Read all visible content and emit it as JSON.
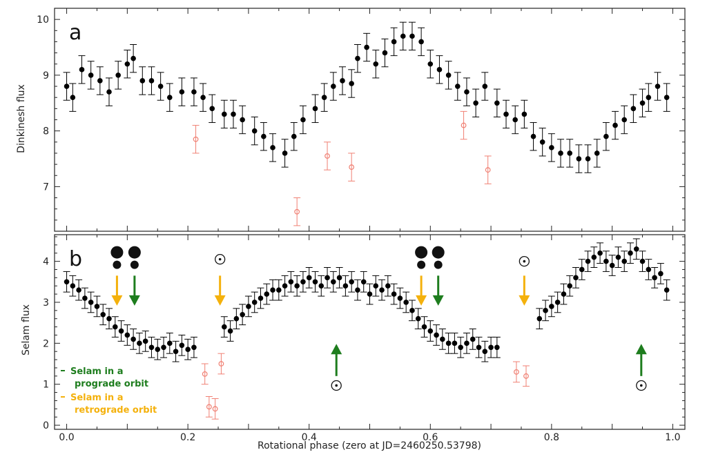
{
  "colors": {
    "data_point": "#000000",
    "outlier": "#f07f72",
    "prograde": "#1e7d1e",
    "retrograde": "#f4b10c",
    "axis": "#222222"
  },
  "xaxis": {
    "label": "Rotational phase (zero at JD=2460250.53798)",
    "range": [
      -0.02,
      1.02
    ],
    "ticks": [
      0.0,
      0.2,
      0.4,
      0.6,
      0.8,
      1.0
    ],
    "tick_labels": [
      "0.0",
      "0.2",
      "0.4",
      "0.6",
      "0.8",
      "1.0"
    ]
  },
  "chart_data": [
    {
      "type": "scatter",
      "panel_letter": "a",
      "ylabel": "Dinkinesh flux",
      "ylim": [
        6.2,
        10.2
      ],
      "yticks": [
        7,
        8,
        9,
        10
      ],
      "ytick_labels": [
        "7",
        "8",
        "9",
        "10"
      ],
      "error_bar": 0.25,
      "series": [
        {
          "role": "main",
          "x": [
            0.0,
            0.01,
            0.025,
            0.04,
            0.055,
            0.07,
            0.085,
            0.1,
            0.11,
            0.125,
            0.14,
            0.155,
            0.17,
            0.19,
            0.21,
            0.225,
            0.24,
            0.26,
            0.275,
            0.29,
            0.31,
            0.325,
            0.34,
            0.36,
            0.375,
            0.39,
            0.41,
            0.425,
            0.44,
            0.455,
            0.47,
            0.48,
            0.495,
            0.51,
            0.525,
            0.54,
            0.555,
            0.57,
            0.585,
            0.6,
            0.615,
            0.63,
            0.645,
            0.66,
            0.675,
            0.69,
            0.71,
            0.725,
            0.74,
            0.755,
            0.77,
            0.785,
            0.8,
            0.815,
            0.83,
            0.845,
            0.86,
            0.875,
            0.89,
            0.905,
            0.92,
            0.935,
            0.95,
            0.96,
            0.975,
            0.99
          ],
          "y": [
            8.8,
            8.6,
            9.1,
            9.0,
            8.9,
            8.7,
            9.0,
            9.2,
            9.3,
            8.9,
            8.9,
            8.8,
            8.6,
            8.7,
            8.7,
            8.6,
            8.4,
            8.3,
            8.3,
            8.2,
            8.0,
            7.9,
            7.7,
            7.6,
            7.9,
            8.2,
            8.4,
            8.6,
            8.8,
            8.9,
            8.85,
            9.3,
            9.5,
            9.2,
            9.4,
            9.6,
            9.7,
            9.7,
            9.6,
            9.2,
            9.1,
            9.0,
            8.8,
            8.7,
            8.5,
            8.8,
            8.5,
            8.3,
            8.2,
            8.3,
            7.9,
            7.8,
            7.7,
            7.6,
            7.6,
            7.5,
            7.5,
            7.6,
            7.9,
            8.1,
            8.2,
            8.4,
            8.5,
            8.6,
            8.8,
            8.6
          ]
        },
        {
          "role": "outlier",
          "x": [
            0.213,
            0.38,
            0.43,
            0.47,
            0.655,
            0.695
          ],
          "y": [
            7.85,
            6.55,
            7.55,
            7.35,
            8.1,
            7.3
          ]
        }
      ]
    },
    {
      "type": "scatter",
      "panel_letter": "b",
      "ylabel": "Selam flux",
      "ylim": [
        -0.1,
        4.65
      ],
      "yticks": [
        0,
        1,
        2,
        3,
        4
      ],
      "ytick_labels": [
        "0",
        "1",
        "2",
        "3",
        "4"
      ],
      "error_bar": 0.25,
      "series": [
        {
          "role": "main",
          "x": [
            0.0,
            0.01,
            0.02,
            0.03,
            0.04,
            0.05,
            0.06,
            0.07,
            0.08,
            0.09,
            0.1,
            0.11,
            0.12,
            0.13,
            0.14,
            0.15,
            0.16,
            0.17,
            0.18,
            0.19,
            0.2,
            0.21,
            0.26,
            0.27,
            0.28,
            0.29,
            0.3,
            0.31,
            0.32,
            0.33,
            0.34,
            0.35,
            0.36,
            0.37,
            0.38,
            0.39,
            0.4,
            0.41,
            0.42,
            0.43,
            0.44,
            0.45,
            0.46,
            0.47,
            0.48,
            0.49,
            0.5,
            0.51,
            0.52,
            0.53,
            0.54,
            0.55,
            0.56,
            0.57,
            0.58,
            0.59,
            0.6,
            0.61,
            0.62,
            0.63,
            0.64,
            0.65,
            0.66,
            0.67,
            0.68,
            0.69,
            0.7,
            0.71,
            0.78,
            0.79,
            0.8,
            0.81,
            0.82,
            0.83,
            0.84,
            0.85,
            0.86,
            0.87,
            0.88,
            0.89,
            0.9,
            0.91,
            0.92,
            0.93,
            0.94,
            0.95,
            0.96,
            0.97,
            0.98,
            0.99
          ],
          "y": [
            3.5,
            3.4,
            3.3,
            3.1,
            3.0,
            2.9,
            2.7,
            2.6,
            2.4,
            2.3,
            2.2,
            2.1,
            2.0,
            2.05,
            1.9,
            1.85,
            1.9,
            2.0,
            1.8,
            1.95,
            1.85,
            1.9,
            2.4,
            2.3,
            2.6,
            2.7,
            2.9,
            3.0,
            3.1,
            3.2,
            3.3,
            3.3,
            3.4,
            3.5,
            3.4,
            3.5,
            3.6,
            3.5,
            3.4,
            3.6,
            3.5,
            3.6,
            3.4,
            3.5,
            3.3,
            3.5,
            3.2,
            3.4,
            3.3,
            3.4,
            3.2,
            3.1,
            3.0,
            2.8,
            2.6,
            2.4,
            2.3,
            2.2,
            2.1,
            2.0,
            2.0,
            1.9,
            2.0,
            2.1,
            1.9,
            1.8,
            1.9,
            1.9,
            2.6,
            2.8,
            2.9,
            3.0,
            3.2,
            3.4,
            3.6,
            3.8,
            4.0,
            4.1,
            4.2,
            4.0,
            3.9,
            4.1,
            4.0,
            4.2,
            4.3,
            4.0,
            3.8,
            3.6,
            3.7,
            3.3
          ]
        },
        {
          "role": "outlier",
          "x": [
            0.228,
            0.235,
            0.245,
            0.255,
            0.742,
            0.758
          ],
          "y": [
            1.25,
            0.45,
            0.4,
            1.5,
            1.3,
            1.2
          ]
        }
      ],
      "legend": {
        "prograde": "Selam in a\nprograde orbit",
        "retrograde": "Selam in a\nretrograde orbit"
      },
      "annotations": [
        {
          "kind": "arrow-down",
          "color": "retrograde",
          "x": 0.083,
          "y_from": 3.65,
          "y_to": 2.95
        },
        {
          "kind": "arrow-down",
          "color": "prograde",
          "x": 0.112,
          "y_from": 3.65,
          "y_to": 2.95
        },
        {
          "kind": "arrow-down",
          "color": "retrograde",
          "x": 0.253,
          "y_from": 3.65,
          "y_to": 2.95
        },
        {
          "kind": "arrow-down",
          "color": "retrograde",
          "x": 0.585,
          "y_from": 3.65,
          "y_to": 2.95
        },
        {
          "kind": "arrow-down",
          "color": "prograde",
          "x": 0.613,
          "y_from": 3.65,
          "y_to": 2.95
        },
        {
          "kind": "arrow-down",
          "color": "retrograde",
          "x": 0.755,
          "y_from": 3.65,
          "y_to": 2.95
        },
        {
          "kind": "arrow-up",
          "color": "prograde",
          "x": 0.445,
          "y_from": 1.2,
          "y_to": 1.95
        },
        {
          "kind": "arrow-up",
          "color": "prograde",
          "x": 0.948,
          "y_from": 1.2,
          "y_to": 1.95
        },
        {
          "kind": "binary-icon",
          "x": 0.083,
          "y": 4.05
        },
        {
          "kind": "binary-icon",
          "x": 0.112,
          "y": 4.05
        },
        {
          "kind": "binary-icon",
          "x": 0.585,
          "y": 4.05
        },
        {
          "kind": "binary-icon",
          "x": 0.613,
          "y": 4.05
        },
        {
          "kind": "sun-symbol",
          "x": 0.253,
          "y": 4.05
        },
        {
          "kind": "sun-symbol",
          "x": 0.755,
          "y": 4.0
        },
        {
          "kind": "sun-symbol",
          "x": 0.445,
          "y": 0.97
        },
        {
          "kind": "sun-symbol",
          "x": 0.948,
          "y": 0.97
        }
      ]
    }
  ]
}
